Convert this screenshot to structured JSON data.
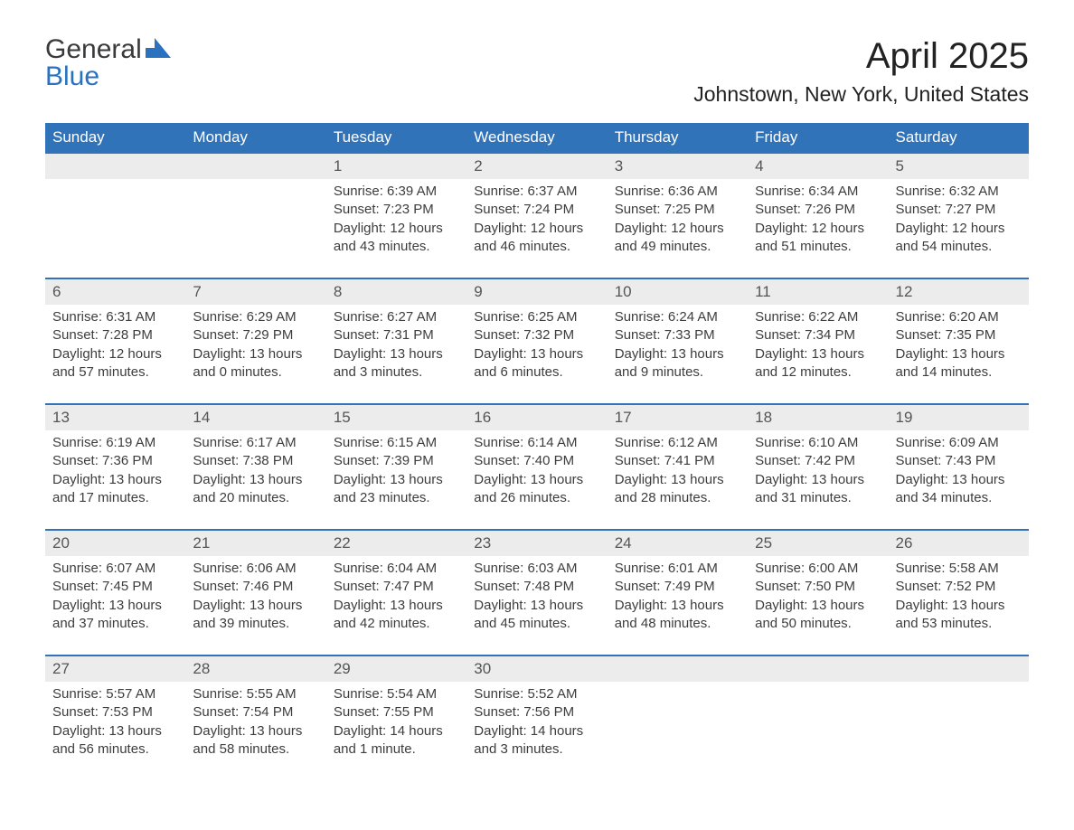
{
  "logo": {
    "word1": "General",
    "word2": "Blue"
  },
  "title": "April 2025",
  "subtitle": "Johnstown, New York, United States",
  "style": {
    "header_bg": "#3173b8",
    "header_text": "#ffffff",
    "daynum_bg": "#ececec",
    "daynum_border": "#3173b8",
    "body_text": "#3d3d3d",
    "title_fontsize": 40,
    "subtitle_fontsize": 23,
    "cell_fontsize": 15
  },
  "days": [
    "Sunday",
    "Monday",
    "Tuesday",
    "Wednesday",
    "Thursday",
    "Friday",
    "Saturday"
  ],
  "weeks": [
    [
      {
        "num": "",
        "lines": []
      },
      {
        "num": "",
        "lines": []
      },
      {
        "num": "1",
        "lines": [
          "Sunrise: 6:39 AM",
          "Sunset: 7:23 PM",
          "Daylight: 12 hours and 43 minutes."
        ]
      },
      {
        "num": "2",
        "lines": [
          "Sunrise: 6:37 AM",
          "Sunset: 7:24 PM",
          "Daylight: 12 hours and 46 minutes."
        ]
      },
      {
        "num": "3",
        "lines": [
          "Sunrise: 6:36 AM",
          "Sunset: 7:25 PM",
          "Daylight: 12 hours and 49 minutes."
        ]
      },
      {
        "num": "4",
        "lines": [
          "Sunrise: 6:34 AM",
          "Sunset: 7:26 PM",
          "Daylight: 12 hours and 51 minutes."
        ]
      },
      {
        "num": "5",
        "lines": [
          "Sunrise: 6:32 AM",
          "Sunset: 7:27 PM",
          "Daylight: 12 hours and 54 minutes."
        ]
      }
    ],
    [
      {
        "num": "6",
        "lines": [
          "Sunrise: 6:31 AM",
          "Sunset: 7:28 PM",
          "Daylight: 12 hours and 57 minutes."
        ]
      },
      {
        "num": "7",
        "lines": [
          "Sunrise: 6:29 AM",
          "Sunset: 7:29 PM",
          "Daylight: 13 hours and 0 minutes."
        ]
      },
      {
        "num": "8",
        "lines": [
          "Sunrise: 6:27 AM",
          "Sunset: 7:31 PM",
          "Daylight: 13 hours and 3 minutes."
        ]
      },
      {
        "num": "9",
        "lines": [
          "Sunrise: 6:25 AM",
          "Sunset: 7:32 PM",
          "Daylight: 13 hours and 6 minutes."
        ]
      },
      {
        "num": "10",
        "lines": [
          "Sunrise: 6:24 AM",
          "Sunset: 7:33 PM",
          "Daylight: 13 hours and 9 minutes."
        ]
      },
      {
        "num": "11",
        "lines": [
          "Sunrise: 6:22 AM",
          "Sunset: 7:34 PM",
          "Daylight: 13 hours and 12 minutes."
        ]
      },
      {
        "num": "12",
        "lines": [
          "Sunrise: 6:20 AM",
          "Sunset: 7:35 PM",
          "Daylight: 13 hours and 14 minutes."
        ]
      }
    ],
    [
      {
        "num": "13",
        "lines": [
          "Sunrise: 6:19 AM",
          "Sunset: 7:36 PM",
          "Daylight: 13 hours and 17 minutes."
        ]
      },
      {
        "num": "14",
        "lines": [
          "Sunrise: 6:17 AM",
          "Sunset: 7:38 PM",
          "Daylight: 13 hours and 20 minutes."
        ]
      },
      {
        "num": "15",
        "lines": [
          "Sunrise: 6:15 AM",
          "Sunset: 7:39 PM",
          "Daylight: 13 hours and 23 minutes."
        ]
      },
      {
        "num": "16",
        "lines": [
          "Sunrise: 6:14 AM",
          "Sunset: 7:40 PM",
          "Daylight: 13 hours and 26 minutes."
        ]
      },
      {
        "num": "17",
        "lines": [
          "Sunrise: 6:12 AM",
          "Sunset: 7:41 PM",
          "Daylight: 13 hours and 28 minutes."
        ]
      },
      {
        "num": "18",
        "lines": [
          "Sunrise: 6:10 AM",
          "Sunset: 7:42 PM",
          "Daylight: 13 hours and 31 minutes."
        ]
      },
      {
        "num": "19",
        "lines": [
          "Sunrise: 6:09 AM",
          "Sunset: 7:43 PM",
          "Daylight: 13 hours and 34 minutes."
        ]
      }
    ],
    [
      {
        "num": "20",
        "lines": [
          "Sunrise: 6:07 AM",
          "Sunset: 7:45 PM",
          "Daylight: 13 hours and 37 minutes."
        ]
      },
      {
        "num": "21",
        "lines": [
          "Sunrise: 6:06 AM",
          "Sunset: 7:46 PM",
          "Daylight: 13 hours and 39 minutes."
        ]
      },
      {
        "num": "22",
        "lines": [
          "Sunrise: 6:04 AM",
          "Sunset: 7:47 PM",
          "Daylight: 13 hours and 42 minutes."
        ]
      },
      {
        "num": "23",
        "lines": [
          "Sunrise: 6:03 AM",
          "Sunset: 7:48 PM",
          "Daylight: 13 hours and 45 minutes."
        ]
      },
      {
        "num": "24",
        "lines": [
          "Sunrise: 6:01 AM",
          "Sunset: 7:49 PM",
          "Daylight: 13 hours and 48 minutes."
        ]
      },
      {
        "num": "25",
        "lines": [
          "Sunrise: 6:00 AM",
          "Sunset: 7:50 PM",
          "Daylight: 13 hours and 50 minutes."
        ]
      },
      {
        "num": "26",
        "lines": [
          "Sunrise: 5:58 AM",
          "Sunset: 7:52 PM",
          "Daylight: 13 hours and 53 minutes."
        ]
      }
    ],
    [
      {
        "num": "27",
        "lines": [
          "Sunrise: 5:57 AM",
          "Sunset: 7:53 PM",
          "Daylight: 13 hours and 56 minutes."
        ]
      },
      {
        "num": "28",
        "lines": [
          "Sunrise: 5:55 AM",
          "Sunset: 7:54 PM",
          "Daylight: 13 hours and 58 minutes."
        ]
      },
      {
        "num": "29",
        "lines": [
          "Sunrise: 5:54 AM",
          "Sunset: 7:55 PM",
          "Daylight: 14 hours and 1 minute."
        ]
      },
      {
        "num": "30",
        "lines": [
          "Sunrise: 5:52 AM",
          "Sunset: 7:56 PM",
          "Daylight: 14 hours and 3 minutes."
        ]
      },
      {
        "num": "",
        "lines": []
      },
      {
        "num": "",
        "lines": []
      },
      {
        "num": "",
        "lines": []
      }
    ]
  ]
}
